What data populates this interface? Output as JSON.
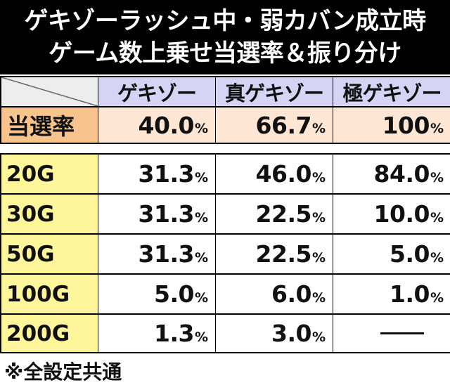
{
  "title": {
    "line1": "ゲキゾーラッシュ中・弱カバン成立時",
    "line2": "ゲーム数上乗せ当選率＆振り分け"
  },
  "table": {
    "columns": [
      "ゲキゾー",
      "真ゲキゾー",
      "極ゲキゾー"
    ],
    "rate_row": {
      "label": "当選率",
      "values": [
        "40.0",
        "66.7",
        "100"
      ],
      "unit": "%"
    },
    "rows": [
      {
        "label": "20G",
        "values": [
          "31.3",
          "46.0",
          "84.0"
        ]
      },
      {
        "label": "30G",
        "values": [
          "31.3",
          "22.5",
          "10.0"
        ]
      },
      {
        "label": "50G",
        "values": [
          "31.3",
          "22.5",
          "5.0"
        ]
      },
      {
        "label": "100G",
        "values": [
          "5.0",
          "6.0",
          "1.0"
        ]
      },
      {
        "label": "200G",
        "values": [
          "1.3",
          "3.0",
          null
        ]
      }
    ],
    "unit": "%"
  },
  "footnote": "※全設定共通",
  "colors": {
    "title_bg": "#000000",
    "header_bg": "#d5d4f5",
    "rate_label_bg": "#f9c38e",
    "rate_value_bg": "#fde7d4",
    "row_label_bg": "#fff59a"
  }
}
